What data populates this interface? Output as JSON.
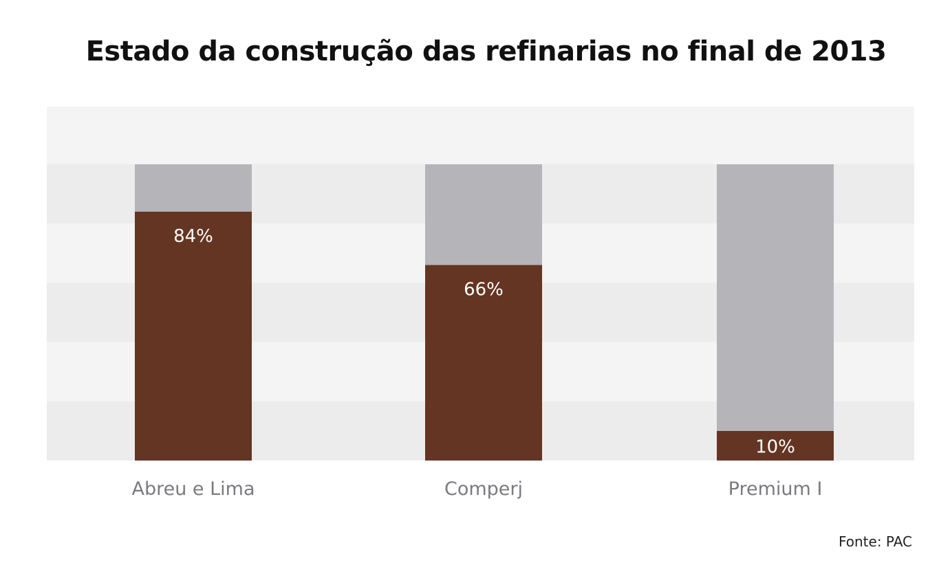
{
  "chart_data": {
    "type": "bar",
    "stacked": true,
    "title": "Estado da construção das refinarias no final de 2013",
    "categories": [
      "Abreu e Lima",
      "Comperj",
      "Premium I"
    ],
    "series": [
      {
        "values": [
          84,
          66,
          10
        ],
        "color": "#643522"
      },
      {
        "values": [
          16,
          34,
          90
        ],
        "color": "#b5b4b9"
      }
    ],
    "data_labels": [
      "84%",
      "66%",
      "10%"
    ],
    "ylim": [
      0,
      100
    ],
    "grid": true,
    "grid_colors": [
      "#ececec",
      "#f4f4f4"
    ],
    "source": "Fonte: PAC"
  }
}
